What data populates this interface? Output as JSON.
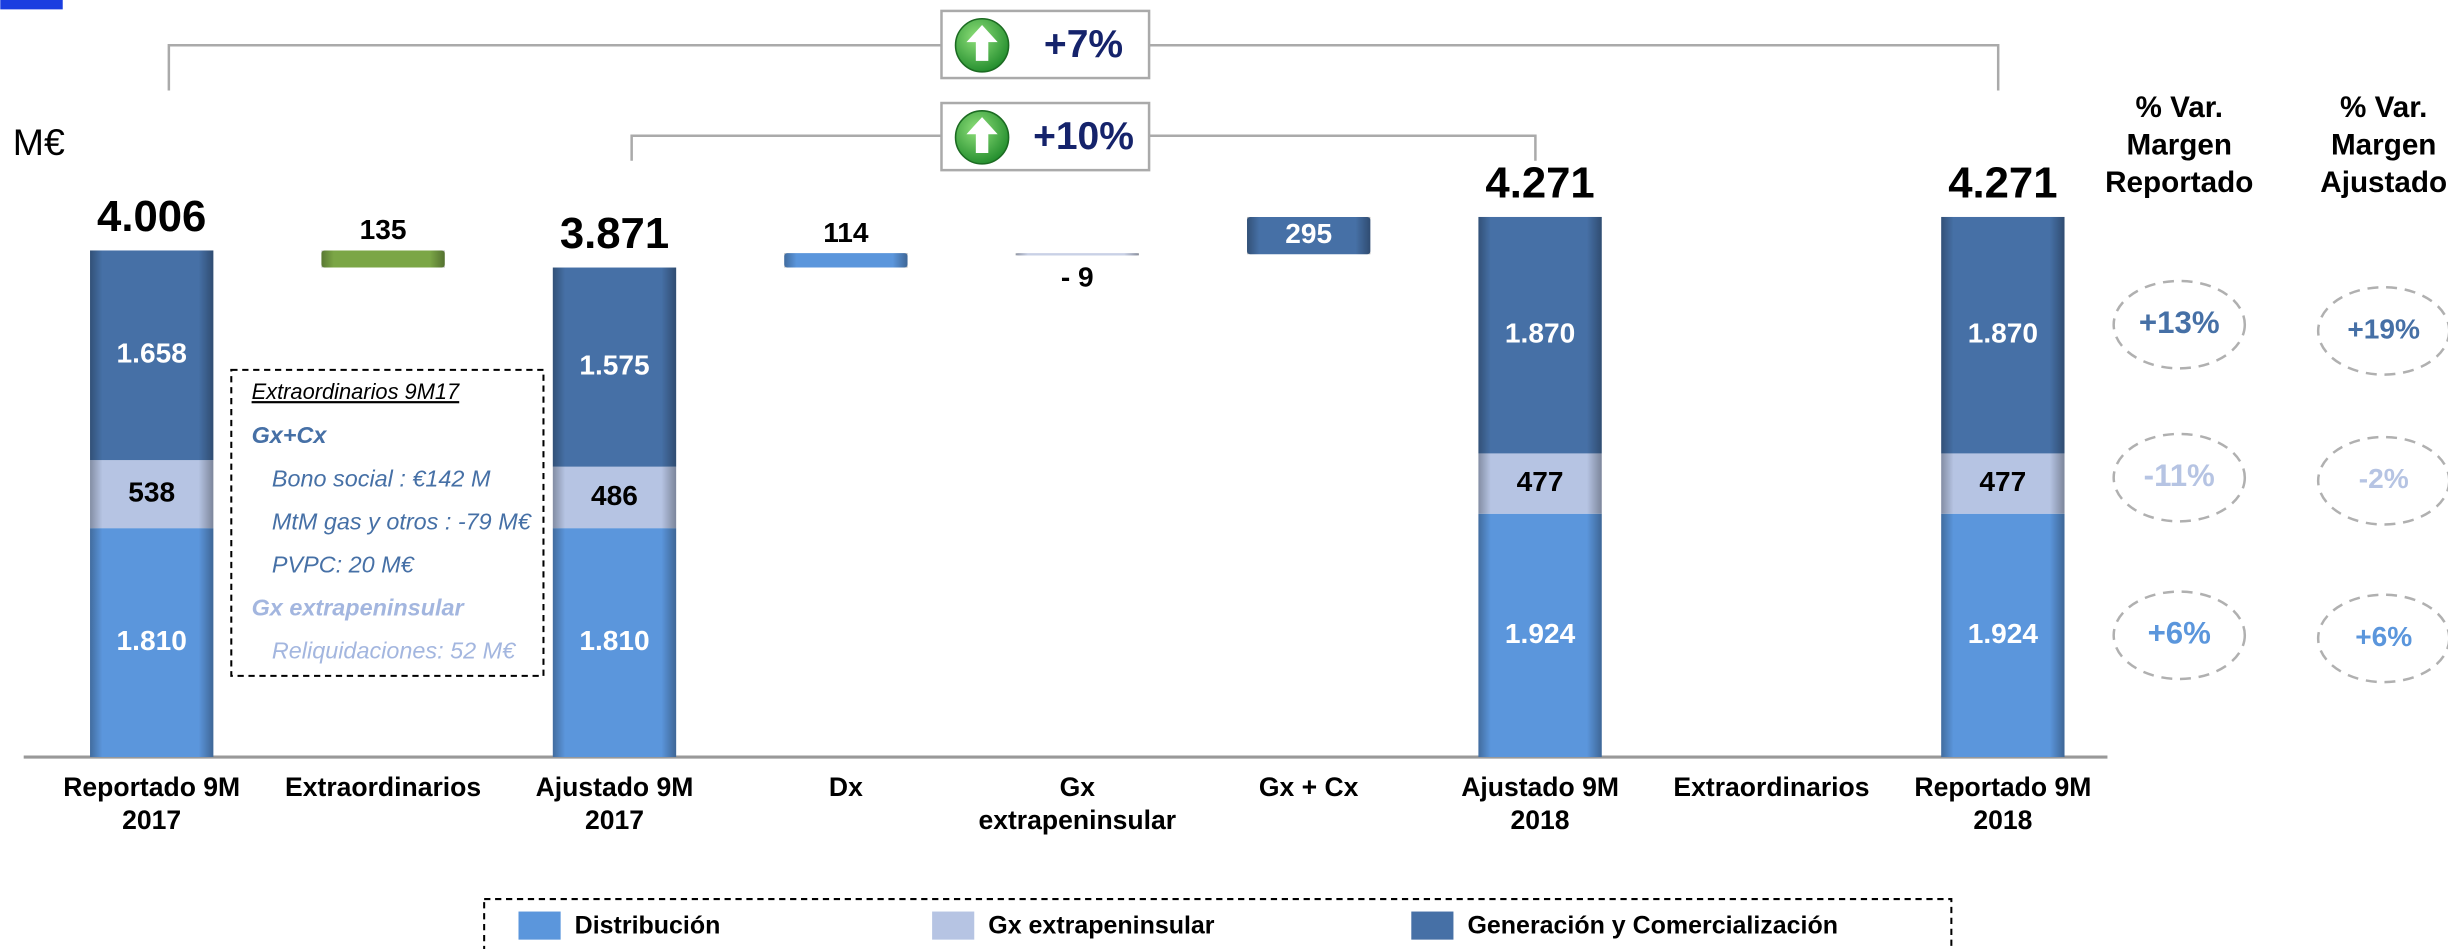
{
  "chart_data": {
    "type": "waterfall",
    "y_label": "M€",
    "categories": [
      "Reportado 9M\n2017",
      "Extraordinarios",
      "Ajustado 9M\n2017",
      "Dx",
      "Gx\nextrapeninsular",
      "Gx + Cx",
      "Ajustado 9M\n2018",
      "Extraordinarios",
      "Reportado 9M\n2018"
    ],
    "series": [
      {
        "name": "Distribución",
        "color": "#5b96dc",
        "values": [
          1810,
          null,
          1810,
          null,
          null,
          null,
          1924,
          null,
          1924
        ],
        "value_labels": [
          "1.810",
          null,
          "1.810",
          null,
          null,
          null,
          "1.924",
          null,
          "1.924"
        ]
      },
      {
        "name": "Gx extrapeninsular",
        "color": "#b6c4e3",
        "values": [
          538,
          null,
          486,
          null,
          null,
          null,
          477,
          null,
          477
        ],
        "value_labels": [
          "538",
          null,
          "486",
          null,
          null,
          null,
          "477",
          null,
          "477"
        ]
      },
      {
        "name": "Generación y Comercialización",
        "color": "#4670a6",
        "values": [
          1658,
          null,
          1575,
          null,
          null,
          null,
          1870,
          null,
          1870
        ],
        "value_labels": [
          "1.658",
          null,
          "1.575",
          null,
          null,
          null,
          "1.870",
          null,
          "1.870"
        ]
      }
    ],
    "totals": [
      4006,
      null,
      3871,
      null,
      null,
      null,
      4271,
      null,
      4271
    ],
    "total_labels": [
      "4.006",
      null,
      "3.871",
      null,
      null,
      null,
      "4.271",
      null,
      "4.271"
    ],
    "deltas": [
      null,
      135,
      null,
      114,
      -9,
      295,
      null,
      null,
      null
    ],
    "delta_labels": [
      null,
      "135",
      null,
      "114",
      "- 9",
      "295",
      null,
      null,
      null
    ],
    "delta_colors": [
      null,
      "#7ba646",
      null,
      "#5b96dc",
      "#c9d1e6",
      "#4670a6",
      null,
      null,
      null
    ],
    "change_reported": "+7%",
    "change_adjusted": "+10%",
    "variation_columns": [
      {
        "title": "% Var.\nMargen\nReportado",
        "labels": [
          "+13%",
          "-11%",
          "+6%"
        ]
      },
      {
        "title": "% Var.\nMargen\nAjustado",
        "labels": [
          "+19%",
          "-2%",
          "+6%"
        ]
      }
    ],
    "note": {
      "title": "Extraordinarios 9M17",
      "groups": [
        {
          "name": "Gx+Cx",
          "items": [
            "Bono social : €142 M",
            "MtM gas y otros : -79 M€",
            "PVPC: 20 M€"
          ]
        },
        {
          "name": "Gx extrapeninsular",
          "items": [
            "Reliquidaciones: 52 M€"
          ]
        }
      ]
    }
  }
}
